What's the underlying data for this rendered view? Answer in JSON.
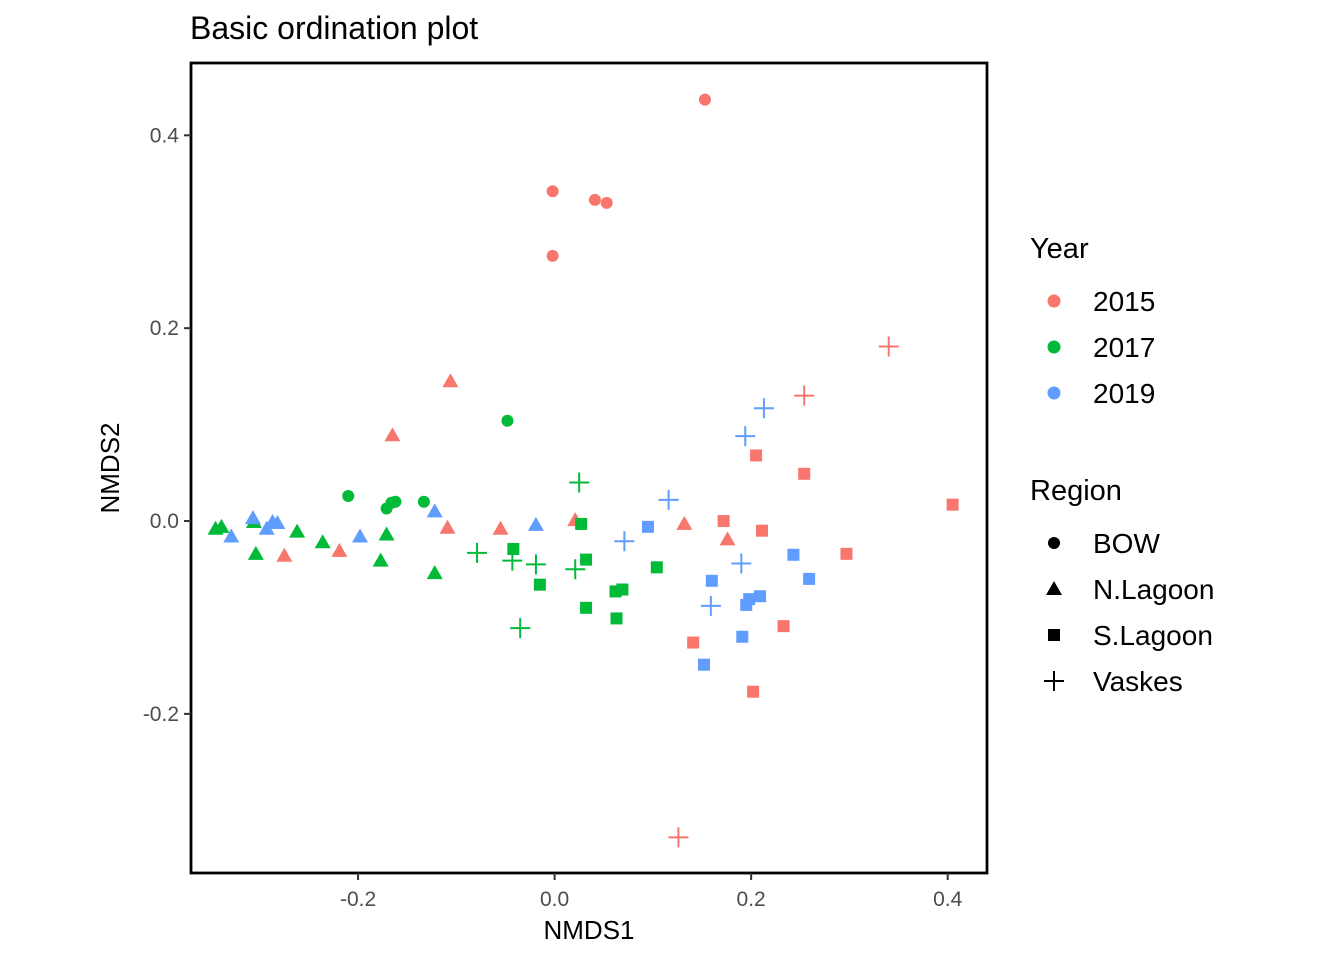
{
  "chart_data": {
    "type": "scatter",
    "title": "Basic ordination plot",
    "xlabel": "NMDS1",
    "ylabel": "NMDS2",
    "xlim": [
      -0.37,
      0.44
    ],
    "ylim": [
      -0.365,
      0.475
    ],
    "x_ticks": [
      -0.2,
      0.0,
      0.2,
      0.4
    ],
    "x_tick_labels": [
      "-0.2",
      "0.0",
      "0.2",
      "0.4"
    ],
    "y_ticks": [
      -0.2,
      0.0,
      0.2,
      0.4
    ],
    "y_tick_labels": [
      "-0.2",
      "0.0",
      "0.2",
      "0.4"
    ],
    "grid": false,
    "legend_placement": "right",
    "color_legend": {
      "title": "Year",
      "entries": [
        {
          "label": "2015",
          "color": "#F8766D"
        },
        {
          "label": "2017",
          "color": "#00BA38"
        },
        {
          "label": "2019",
          "color": "#619CFF"
        }
      ]
    },
    "shape_legend": {
      "title": "Region",
      "entries": [
        {
          "label": "BOW",
          "shape": "circle"
        },
        {
          "label": "N.Lagoon",
          "shape": "triangle"
        },
        {
          "label": "S.Lagoon",
          "shape": "square"
        },
        {
          "label": "Vaskes",
          "shape": "plus"
        }
      ]
    },
    "points": [
      {
        "x": 0.153,
        "y": 0.437,
        "year": "2015",
        "region": "BOW"
      },
      {
        "x": -0.002,
        "y": 0.342,
        "year": "2015",
        "region": "BOW"
      },
      {
        "x": 0.041,
        "y": 0.333,
        "year": "2015",
        "region": "BOW"
      },
      {
        "x": 0.053,
        "y": 0.33,
        "year": "2015",
        "region": "BOW"
      },
      {
        "x": -0.002,
        "y": 0.275,
        "year": "2015",
        "region": "BOW"
      },
      {
        "x": -0.106,
        "y": 0.145,
        "year": "2015",
        "region": "N.Lagoon"
      },
      {
        "x": -0.165,
        "y": 0.089,
        "year": "2015",
        "region": "N.Lagoon"
      },
      {
        "x": -0.109,
        "y": -0.007,
        "year": "2015",
        "region": "N.Lagoon"
      },
      {
        "x": -0.055,
        "y": -0.008,
        "year": "2015",
        "region": "N.Lagoon"
      },
      {
        "x": 0.021,
        "y": 0.001,
        "year": "2015",
        "region": "N.Lagoon"
      },
      {
        "x": 0.132,
        "y": -0.003,
        "year": "2015",
        "region": "N.Lagoon"
      },
      {
        "x": 0.176,
        "y": -0.019,
        "year": "2015",
        "region": "N.Lagoon"
      },
      {
        "x": -0.219,
        "y": -0.031,
        "year": "2015",
        "region": "N.Lagoon"
      },
      {
        "x": -0.275,
        "y": -0.036,
        "year": "2015",
        "region": "N.Lagoon"
      },
      {
        "x": 0.205,
        "y": 0.068,
        "year": "2015",
        "region": "S.Lagoon"
      },
      {
        "x": 0.254,
        "y": 0.049,
        "year": "2015",
        "region": "S.Lagoon"
      },
      {
        "x": 0.405,
        "y": 0.017,
        "year": "2015",
        "region": "S.Lagoon"
      },
      {
        "x": 0.172,
        "y": 0.0,
        "year": "2015",
        "region": "S.Lagoon"
      },
      {
        "x": 0.211,
        "y": -0.01,
        "year": "2015",
        "region": "S.Lagoon"
      },
      {
        "x": 0.297,
        "y": -0.034,
        "year": "2015",
        "region": "S.Lagoon"
      },
      {
        "x": 0.233,
        "y": -0.109,
        "year": "2015",
        "region": "S.Lagoon"
      },
      {
        "x": 0.141,
        "y": -0.126,
        "year": "2015",
        "region": "S.Lagoon"
      },
      {
        "x": 0.202,
        "y": -0.177,
        "year": "2015",
        "region": "S.Lagoon"
      },
      {
        "x": 0.34,
        "y": 0.181,
        "year": "2015",
        "region": "Vaskes"
      },
      {
        "x": 0.254,
        "y": 0.13,
        "year": "2015",
        "region": "Vaskes"
      },
      {
        "x": 0.126,
        "y": -0.328,
        "year": "2015",
        "region": "Vaskes"
      },
      {
        "x": -0.048,
        "y": 0.104,
        "year": "2017",
        "region": "BOW"
      },
      {
        "x": -0.21,
        "y": 0.026,
        "year": "2017",
        "region": "BOW"
      },
      {
        "x": -0.166,
        "y": 0.019,
        "year": "2017",
        "region": "BOW"
      },
      {
        "x": -0.162,
        "y": 0.02,
        "year": "2017",
        "region": "BOW"
      },
      {
        "x": -0.133,
        "y": 0.02,
        "year": "2017",
        "region": "BOW"
      },
      {
        "x": -0.171,
        "y": 0.013,
        "year": "2017",
        "region": "BOW"
      },
      {
        "x": -0.345,
        "y": -0.008,
        "year": "2017",
        "region": "N.Lagoon"
      },
      {
        "x": -0.339,
        "y": -0.006,
        "year": "2017",
        "region": "N.Lagoon"
      },
      {
        "x": -0.306,
        "y": -0.001,
        "year": "2017",
        "region": "N.Lagoon"
      },
      {
        "x": -0.262,
        "y": -0.011,
        "year": "2017",
        "region": "N.Lagoon"
      },
      {
        "x": -0.236,
        "y": -0.022,
        "year": "2017",
        "region": "N.Lagoon"
      },
      {
        "x": -0.171,
        "y": -0.014,
        "year": "2017",
        "region": "N.Lagoon"
      },
      {
        "x": -0.304,
        "y": -0.034,
        "year": "2017",
        "region": "N.Lagoon"
      },
      {
        "x": -0.177,
        "y": -0.041,
        "year": "2017",
        "region": "N.Lagoon"
      },
      {
        "x": -0.122,
        "y": -0.054,
        "year": "2017",
        "region": "N.Lagoon"
      },
      {
        "x": 0.027,
        "y": -0.003,
        "year": "2017",
        "region": "S.Lagoon"
      },
      {
        "x": -0.042,
        "y": -0.029,
        "year": "2017",
        "region": "S.Lagoon"
      },
      {
        "x": 0.032,
        "y": -0.04,
        "year": "2017",
        "region": "S.Lagoon"
      },
      {
        "x": 0.104,
        "y": -0.048,
        "year": "2017",
        "region": "S.Lagoon"
      },
      {
        "x": -0.015,
        "y": -0.066,
        "year": "2017",
        "region": "S.Lagoon"
      },
      {
        "x": 0.062,
        "y": -0.073,
        "year": "2017",
        "region": "S.Lagoon"
      },
      {
        "x": 0.069,
        "y": -0.071,
        "year": "2017",
        "region": "S.Lagoon"
      },
      {
        "x": 0.032,
        "y": -0.09,
        "year": "2017",
        "region": "S.Lagoon"
      },
      {
        "x": 0.063,
        "y": -0.101,
        "year": "2017",
        "region": "S.Lagoon"
      },
      {
        "x": 0.025,
        "y": 0.04,
        "year": "2017",
        "region": "Vaskes"
      },
      {
        "x": -0.079,
        "y": -0.033,
        "year": "2017",
        "region": "Vaskes"
      },
      {
        "x": -0.043,
        "y": -0.041,
        "year": "2017",
        "region": "Vaskes"
      },
      {
        "x": -0.019,
        "y": -0.045,
        "year": "2017",
        "region": "Vaskes"
      },
      {
        "x": 0.021,
        "y": -0.05,
        "year": "2017",
        "region": "Vaskes"
      },
      {
        "x": -0.035,
        "y": -0.111,
        "year": "2017",
        "region": "Vaskes"
      },
      {
        "x": -0.307,
        "y": 0.003,
        "year": "2019",
        "region": "N.Lagoon"
      },
      {
        "x": -0.287,
        "y": -0.001,
        "year": "2019",
        "region": "N.Lagoon"
      },
      {
        "x": -0.282,
        "y": -0.002,
        "year": "2019",
        "region": "N.Lagoon"
      },
      {
        "x": -0.293,
        "y": -0.008,
        "year": "2019",
        "region": "N.Lagoon"
      },
      {
        "x": -0.329,
        "y": -0.016,
        "year": "2019",
        "region": "N.Lagoon"
      },
      {
        "x": -0.198,
        "y": -0.016,
        "year": "2019",
        "region": "N.Lagoon"
      },
      {
        "x": -0.122,
        "y": 0.01,
        "year": "2019",
        "region": "N.Lagoon"
      },
      {
        "x": -0.019,
        "y": -0.004,
        "year": "2019",
        "region": "N.Lagoon"
      },
      {
        "x": 0.095,
        "y": -0.006,
        "year": "2019",
        "region": "S.Lagoon"
      },
      {
        "x": 0.243,
        "y": -0.035,
        "year": "2019",
        "region": "S.Lagoon"
      },
      {
        "x": 0.16,
        "y": -0.062,
        "year": "2019",
        "region": "S.Lagoon"
      },
      {
        "x": 0.259,
        "y": -0.06,
        "year": "2019",
        "region": "S.Lagoon"
      },
      {
        "x": 0.209,
        "y": -0.078,
        "year": "2019",
        "region": "S.Lagoon"
      },
      {
        "x": 0.198,
        "y": -0.081,
        "year": "2019",
        "region": "S.Lagoon"
      },
      {
        "x": 0.195,
        "y": -0.087,
        "year": "2019",
        "region": "S.Lagoon"
      },
      {
        "x": 0.191,
        "y": -0.12,
        "year": "2019",
        "region": "S.Lagoon"
      },
      {
        "x": 0.152,
        "y": -0.149,
        "year": "2019",
        "region": "S.Lagoon"
      },
      {
        "x": 0.213,
        "y": 0.117,
        "year": "2019",
        "region": "Vaskes"
      },
      {
        "x": 0.194,
        "y": 0.088,
        "year": "2019",
        "region": "Vaskes"
      },
      {
        "x": 0.116,
        "y": 0.022,
        "year": "2019",
        "region": "Vaskes"
      },
      {
        "x": 0.071,
        "y": -0.021,
        "year": "2019",
        "region": "Vaskes"
      },
      {
        "x": 0.19,
        "y": -0.044,
        "year": "2019",
        "region": "Vaskes"
      },
      {
        "x": 0.159,
        "y": -0.088,
        "year": "2019",
        "region": "Vaskes"
      }
    ]
  }
}
